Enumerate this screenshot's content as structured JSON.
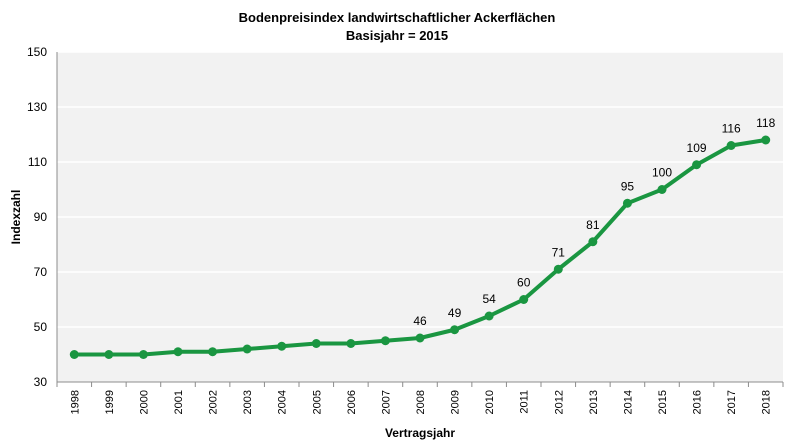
{
  "chart_data": {
    "type": "line",
    "title": "Bodenpreisindex  landwirtschaftlicher Ackerflächen",
    "subtitle": "Basisjahr = 2015",
    "xlabel": "Vertragsjahr",
    "ylabel": "Indexzahl",
    "ylim": [
      30,
      150
    ],
    "yticks": [
      30,
      50,
      70,
      90,
      110,
      130,
      150
    ],
    "grid": true,
    "legend": "none",
    "categories": [
      "1998",
      "1999",
      "2000",
      "2001",
      "2002",
      "2003",
      "2004",
      "2005",
      "2006",
      "2007",
      "2008",
      "2009",
      "2010",
      "2011",
      "2012",
      "2013",
      "2014",
      "2015",
      "2016",
      "2017",
      "2018"
    ],
    "series": [
      {
        "values": [
          40,
          40,
          40,
          41,
          41,
          42,
          43,
          44,
          44,
          45,
          46,
          49,
          54,
          60,
          71,
          81,
          95,
          100,
          109,
          116,
          118
        ],
        "color": "#1a9641"
      }
    ],
    "data_labels": [
      {
        "category": "2008",
        "text": "46"
      },
      {
        "category": "2009",
        "text": "49"
      },
      {
        "category": "2010",
        "text": "54"
      },
      {
        "category": "2011",
        "text": "60"
      },
      {
        "category": "2012",
        "text": "71"
      },
      {
        "category": "2013",
        "text": "81"
      },
      {
        "category": "2014",
        "text": "95"
      },
      {
        "category": "2015",
        "text": "100"
      },
      {
        "category": "2016",
        "text": "109"
      },
      {
        "category": "2017",
        "text": "116"
      },
      {
        "category": "2018",
        "text": "118"
      }
    ],
    "colors": {
      "plot_background": "#f2f2f2",
      "gridline": "#ffffff",
      "axis": "#8c8c8c"
    }
  }
}
